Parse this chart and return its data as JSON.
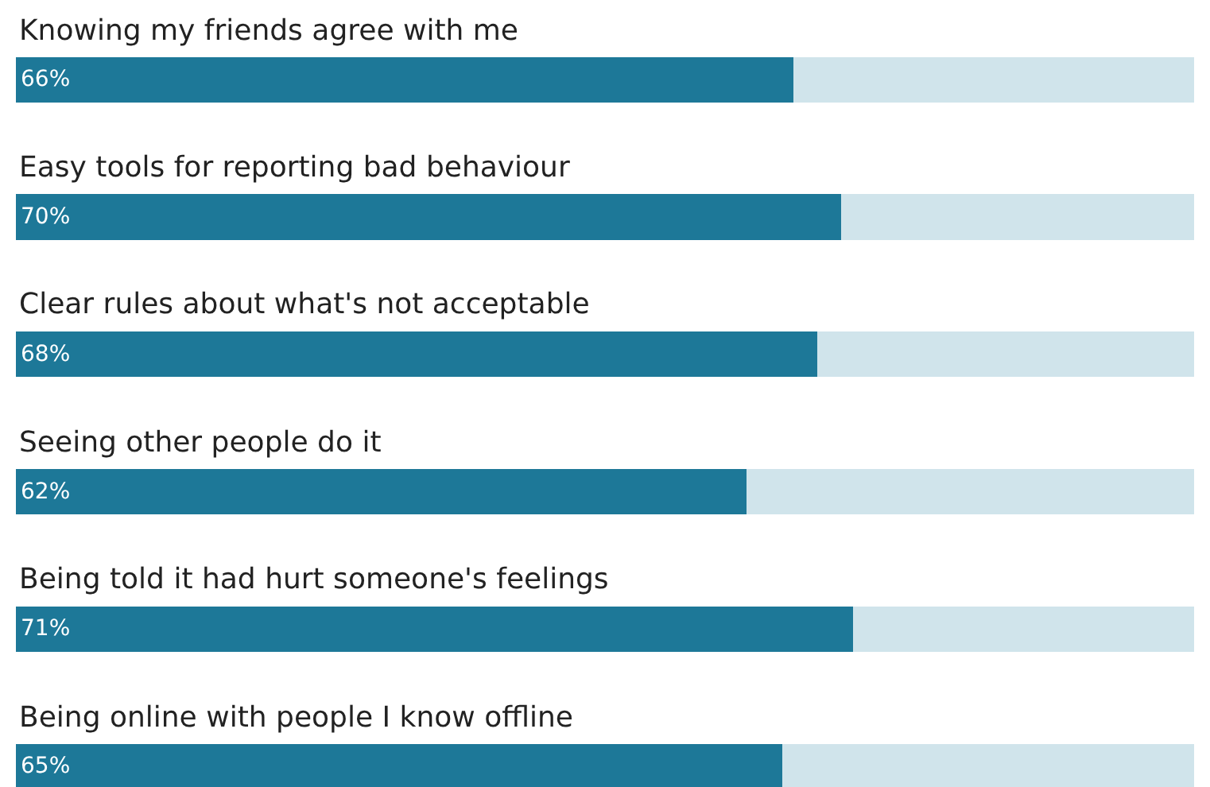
{
  "chart_data": {
    "type": "bar",
    "orientation": "horizontal",
    "stacked": true,
    "categories": [
      "Knowing my friends agree with me",
      "Easy tools for reporting bad behaviour",
      "Clear rules about what's not acceptable",
      "Seeing other people do it",
      "Being told it had hurt someone's feelings",
      "Being online with people I know offline"
    ],
    "series": [
      {
        "color": "#1d7898",
        "values": [
          66,
          70,
          68,
          62,
          71,
          65
        ],
        "value_labels": [
          "66%",
          "70%",
          "68%",
          "62%",
          "71%",
          "65%"
        ]
      },
      {
        "color": "#d0e4eb",
        "values": [
          34,
          30,
          32,
          38,
          29,
          35
        ]
      }
    ],
    "xlim": [
      0,
      100
    ]
  }
}
